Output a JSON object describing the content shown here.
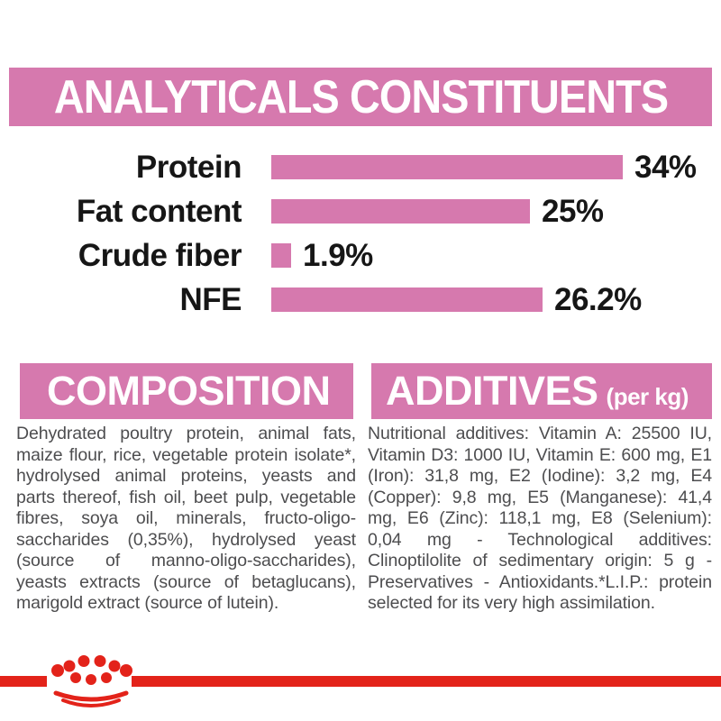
{
  "title_banner": {
    "text": "ANALYTICALS CONSTITUENTS"
  },
  "colors": {
    "brand_pink": "#d679ae",
    "brand_red": "#e3231a",
    "heading_text": "#ffffff",
    "label_text": "#161616",
    "body_text": "#4d4d4f"
  },
  "chart_data": {
    "type": "bar",
    "orientation": "horizontal",
    "title": "ANALYTICALS CONSTITUENTS",
    "categories": [
      "Protein",
      "Fat content",
      "Crude fiber",
      "NFE"
    ],
    "values": [
      34,
      25,
      1.9,
      26.2
    ],
    "value_labels": [
      "34%",
      "25%",
      "1.9%",
      "26.2%"
    ],
    "xlabel": "",
    "ylabel": "",
    "xlim": [
      0,
      40
    ],
    "grid": false,
    "legend": false,
    "bar_color": "#d679ae"
  },
  "composition": {
    "heading": "COMPOSITION",
    "body": "Dehydrated poultry protein, animal fats, maize flour, rice, vegetable protein isolate*, hydrolysed animal proteins, yeasts and parts thereof, fish oil, beet pulp, vegetable fibres, soya oil, minerals, fructo-oligo-saccharides (0,35%), hydrolysed yeast (source of manno-oligo-saccharides), yeasts extracts (source of betaglucans), marigold extract (source of lutein)."
  },
  "additives": {
    "heading": "ADDITIVES",
    "heading_suffix": "(per kg)",
    "body": "Nutritional additives: Vitamin A: 25500 IU, Vitamin D3: 1000 IU, Vitamin E: 600 mg, E1 (Iron): 31,8 mg, E2 (Iodine): 3,2 mg, E4 (Copper): 9,8 mg, E5 (Manganese): 41,4 mg, E6 (Zinc): 118,1 mg, E8 (Selenium): 0,04 mg - Technological additives: Clinoptilolite of sedimentary origin: 5 g - Preservatives - Antioxidants.*L.I.P.: protein selected for its very high assimilation."
  },
  "footer": {
    "brand_logo": "royal-canin-crown"
  }
}
